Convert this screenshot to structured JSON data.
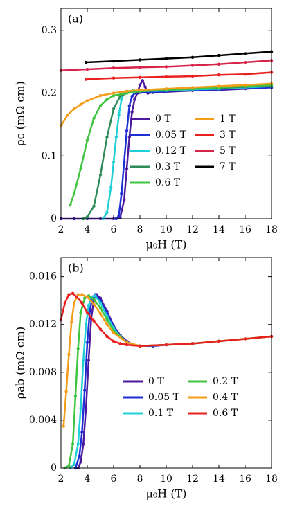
{
  "chart_data": [
    {
      "type": "line",
      "panel_label": "(a)",
      "x_label": "μ₀H (T)",
      "y_label": "ρc (mΩ cm)",
      "xlim": [
        2,
        18
      ],
      "xticks": [
        2,
        4,
        6,
        8,
        10,
        12,
        14,
        16,
        18
      ],
      "ylim": [
        0,
        0.335
      ],
      "yticks": [
        0,
        0.1,
        0.2,
        0.3
      ],
      "series": [
        {
          "name": "0 T",
          "color": "#4b1a9e",
          "x": [
            2,
            3,
            4,
            5,
            6,
            6.5,
            6.8,
            7,
            7.2,
            7.4,
            7.6,
            7.8,
            8,
            8.2,
            8.4,
            8.6,
            9,
            10,
            12,
            14,
            16,
            18
          ],
          "values": [
            0,
            0,
            0,
            0,
            0,
            0.002,
            0.03,
            0.08,
            0.13,
            0.17,
            0.19,
            0.2,
            0.213,
            0.22,
            0.21,
            0.2,
            0.201,
            0.202,
            0.204,
            0.205,
            0.207,
            0.209
          ]
        },
        {
          "name": "0.05 T",
          "color": "#1f2fd6",
          "x": [
            6.2,
            6.4,
            6.6,
            6.8,
            7,
            7.2,
            7.4,
            7.6,
            8,
            9,
            10,
            12,
            14,
            16,
            18
          ],
          "values": [
            0,
            0.005,
            0.04,
            0.09,
            0.14,
            0.18,
            0.195,
            0.2,
            0.201,
            0.202,
            0.203,
            0.205,
            0.206,
            0.208,
            0.209
          ]
        },
        {
          "name": "0.12 T",
          "color": "#1fcfd6",
          "x": [
            5.2,
            5.5,
            5.8,
            6,
            6.2,
            6.4,
            6.6,
            6.8,
            7,
            7.5,
            8,
            10,
            12,
            14,
            16,
            18
          ],
          "values": [
            0,
            0.01,
            0.05,
            0.09,
            0.13,
            0.165,
            0.19,
            0.2,
            0.203,
            0.204,
            0.203,
            0.204,
            0.206,
            0.207,
            0.209,
            0.211
          ]
        },
        {
          "name": "0.3 T",
          "color": "#2e8b57",
          "x": [
            3.7,
            4,
            4.5,
            5,
            5.5,
            6,
            6.5,
            7,
            8,
            10,
            12,
            14,
            16,
            18
          ],
          "values": [
            0,
            0.003,
            0.02,
            0.07,
            0.13,
            0.175,
            0.195,
            0.2,
            0.203,
            0.205,
            0.207,
            0.208,
            0.21,
            0.212
          ]
        },
        {
          "name": "0.6 T",
          "color": "#3ec43e",
          "x": [
            2.7,
            3,
            3.5,
            4,
            4.5,
            5,
            5.5,
            6,
            7,
            8,
            10,
            12,
            14,
            16,
            18
          ],
          "values": [
            0.022,
            0.04,
            0.08,
            0.125,
            0.16,
            0.18,
            0.19,
            0.196,
            0.2,
            0.203,
            0.205,
            0.207,
            0.209,
            0.211,
            0.213
          ]
        },
        {
          "name": "1 T",
          "color": "#f39c1a",
          "x": [
            2,
            2.5,
            3,
            3.5,
            4,
            5,
            6,
            7,
            8,
            10,
            12,
            14,
            16,
            18
          ],
          "values": [
            0.148,
            0.165,
            0.175,
            0.182,
            0.188,
            0.196,
            0.2,
            0.203,
            0.205,
            0.207,
            0.209,
            0.211,
            0.213,
            0.215
          ]
        },
        {
          "name": "3 T",
          "color": "#e8201e",
          "x": [
            3.9,
            6,
            8,
            10,
            12,
            14,
            16,
            18
          ],
          "values": [
            0.222,
            0.224,
            0.225,
            0.226,
            0.227,
            0.229,
            0.23,
            0.233
          ]
        },
        {
          "name": "5 T",
          "color": "#d6234a",
          "x": [
            2,
            4,
            6,
            8,
            10,
            12,
            14,
            16,
            18
          ],
          "values": [
            0.236,
            0.238,
            0.24,
            0.241,
            0.242,
            0.244,
            0.246,
            0.249,
            0.252
          ]
        },
        {
          "name": "7 T",
          "color": "#000000",
          "x": [
            3.9,
            6,
            8,
            10,
            12,
            14,
            16,
            18
          ],
          "values": [
            0.249,
            0.251,
            0.253,
            0.255,
            0.257,
            0.26,
            0.263,
            0.266
          ]
        }
      ]
    },
    {
      "type": "line",
      "panel_label": "(b)",
      "x_label": "μ₀H (T)",
      "y_label": "ρab (mΩ cm)",
      "xlim": [
        2,
        18
      ],
      "xticks": [
        2,
        4,
        6,
        8,
        10,
        12,
        14,
        16,
        18
      ],
      "ylim": [
        0,
        0.0176
      ],
      "yticks": [
        0,
        0.004,
        0.008,
        0.012,
        0.016
      ],
      "series": [
        {
          "name": "0 T",
          "color": "#4b1a9e",
          "x": [
            3.3,
            3.5,
            3.7,
            3.9,
            4.1,
            4.3,
            4.5,
            4.7,
            5,
            5.5,
            6,
            6.5,
            7,
            7.5,
            8,
            9,
            10,
            12,
            14,
            16,
            18
          ],
          "values": [
            0,
            0.0005,
            0.002,
            0.005,
            0.009,
            0.0125,
            0.0141,
            0.0145,
            0.0142,
            0.0131,
            0.0119,
            0.0111,
            0.0106,
            0.0103,
            0.0102,
            0.0102,
            0.0103,
            0.0104,
            0.0106,
            0.0108,
            0.011
          ]
        },
        {
          "name": "0.05 T",
          "color": "#1f2fd6",
          "x": [
            3.1,
            3.4,
            3.6,
            3.8,
            4,
            4.2,
            4.4,
            4.6,
            5,
            5.5,
            6,
            6.5,
            7,
            7.5,
            8,
            9,
            10,
            12,
            14,
            16,
            18
          ],
          "values": [
            0,
            0.001,
            0.003,
            0.0065,
            0.0105,
            0.0132,
            0.0143,
            0.0145,
            0.014,
            0.0129,
            0.0118,
            0.011,
            0.0105,
            0.0103,
            0.0102,
            0.0102,
            0.0103,
            0.0104,
            0.0106,
            0.0108,
            0.011
          ]
        },
        {
          "name": "0.1 T",
          "color": "#1fcfd6",
          "x": [
            2.7,
            3,
            3.3,
            3.5,
            3.7,
            3.9,
            4.1,
            4.3,
            4.6,
            5,
            5.5,
            6,
            6.5,
            7,
            8,
            10,
            12,
            14,
            16,
            18
          ],
          "values": [
            0,
            0.0003,
            0.002,
            0.005,
            0.009,
            0.012,
            0.0136,
            0.0143,
            0.0144,
            0.0138,
            0.0127,
            0.0117,
            0.011,
            0.0105,
            0.0102,
            0.0103,
            0.0104,
            0.0106,
            0.0108,
            0.011
          ]
        },
        {
          "name": "0.2 T",
          "color": "#3ec43e",
          "x": [
            2.3,
            2.6,
            2.9,
            3.1,
            3.3,
            3.5,
            3.8,
            4.1,
            4.5,
            5,
            5.5,
            6,
            7,
            8,
            10,
            12,
            14,
            16,
            18
          ],
          "values": [
            0,
            0.0002,
            0.002,
            0.006,
            0.01,
            0.013,
            0.0142,
            0.0144,
            0.0141,
            0.0134,
            0.0124,
            0.0115,
            0.0105,
            0.0102,
            0.0103,
            0.0104,
            0.0106,
            0.0108,
            0.011
          ]
        },
        {
          "name": "0.4 T",
          "color": "#f39c1a",
          "x": [
            2.2,
            2.4,
            2.6,
            2.8,
            3,
            3.3,
            3.6,
            4,
            4.5,
            5,
            5.5,
            6,
            7,
            8,
            10,
            12,
            14,
            16,
            18
          ],
          "values": [
            0.0035,
            0.0064,
            0.0095,
            0.0122,
            0.0138,
            0.0145,
            0.0145,
            0.0143,
            0.0137,
            0.0129,
            0.012,
            0.0113,
            0.0105,
            0.0102,
            0.0103,
            0.0104,
            0.0106,
            0.0108,
            0.011
          ]
        },
        {
          "name": "0.6 T",
          "color": "#e8201e",
          "x": [
            2,
            2.3,
            2.6,
            2.9,
            3.2,
            3.6,
            4,
            4.5,
            5,
            5.5,
            6,
            6.5,
            7,
            8,
            10,
            12,
            14,
            16,
            18
          ],
          "values": [
            0.0124,
            0.0138,
            0.0145,
            0.0146,
            0.0143,
            0.0138,
            0.013,
            0.0123,
            0.0116,
            0.011,
            0.0106,
            0.0104,
            0.0103,
            0.0102,
            0.0103,
            0.0104,
            0.0106,
            0.0108,
            0.011
          ]
        }
      ]
    }
  ]
}
